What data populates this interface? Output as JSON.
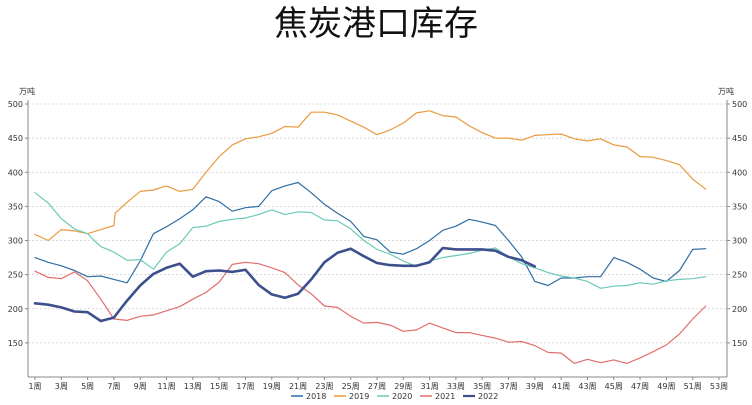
{
  "chart_data": {
    "type": "line",
    "title": "焦炭港口库存",
    "unit_left": "万吨",
    "unit_right": "万吨",
    "ylim": [
      100,
      500
    ],
    "yticks": [
      150,
      200,
      250,
      300,
      350,
      400,
      450,
      500
    ],
    "xlim": [
      1,
      53
    ],
    "x_tick_labels": [
      "1周",
      "3周",
      "5周",
      "7周",
      "9周",
      "11周",
      "13周",
      "15周",
      "17周",
      "19周",
      "21周",
      "23周",
      "25周",
      "27周",
      "29周",
      "31周",
      "33周",
      "35周",
      "37周",
      "39周",
      "41周",
      "43周",
      "45周",
      "47周",
      "49周",
      "51周",
      "53周"
    ],
    "grid": "horizontal dashed",
    "legend": "bottom-center",
    "series": [
      {
        "name": "2018",
        "color": "#2e6da4",
        "width": 1.2,
        "x": [
          1,
          2,
          3,
          4,
          5,
          6,
          7,
          8,
          9,
          10,
          11,
          12,
          13,
          14,
          15,
          16,
          17,
          18,
          19,
          20,
          21,
          22,
          23,
          24,
          25,
          26,
          27,
          28,
          29,
          30,
          31,
          32,
          33,
          34,
          35,
          36,
          37,
          38,
          39,
          40,
          41,
          42,
          43,
          44,
          45,
          46,
          47,
          48,
          49,
          50,
          51,
          52
        ],
        "y": [
          275,
          268,
          263,
          256,
          247,
          248,
          243,
          238,
          270,
          310,
          320,
          332,
          345,
          364,
          357,
          343,
          348,
          350,
          373,
          380,
          385,
          370,
          353,
          340,
          328,
          306,
          301,
          283,
          280,
          288,
          300,
          315,
          321,
          331,
          327,
          322,
          300,
          276,
          240,
          234,
          245,
          245,
          247,
          247,
          275,
          268,
          258,
          245,
          240,
          256,
          287,
          288
        ]
      },
      {
        "name": "2019",
        "color": "#ea9a3e",
        "width": 1.2,
        "x": [
          1,
          2,
          3,
          4,
          5,
          6,
          7,
          7.1,
          8,
          9,
          10,
          11,
          12,
          13,
          14,
          15,
          16,
          17,
          18,
          19,
          20,
          21,
          22,
          23,
          24,
          25,
          26,
          27,
          28,
          29,
          30,
          31,
          32,
          33,
          34,
          35,
          36,
          37,
          38,
          39,
          40,
          41,
          42,
          43,
          44,
          45,
          46,
          47,
          48,
          49,
          50,
          51,
          52
        ],
        "y": [
          309,
          300,
          316,
          314,
          310,
          316,
          322,
          340,
          356,
          372,
          374,
          380,
          372,
          375,
          400,
          423,
          440,
          449,
          452,
          457,
          467,
          466,
          488,
          488,
          484,
          475,
          466,
          455,
          462,
          472,
          487,
          490,
          483,
          481,
          468,
          458,
          450,
          450,
          447,
          454,
          455,
          456,
          449,
          446,
          449,
          440,
          437,
          423,
          422,
          417,
          411,
          390,
          375
        ]
      },
      {
        "name": "2020",
        "color": "#6cc9b8",
        "width": 1.2,
        "x": [
          1,
          2,
          3,
          4,
          5,
          5.5,
          6,
          7,
          8,
          9,
          10,
          11,
          12,
          13,
          14,
          15,
          16,
          17,
          18,
          19,
          20,
          21,
          22,
          23,
          24,
          25,
          26,
          27,
          28,
          29,
          30,
          31,
          32,
          33,
          34,
          35,
          36,
          37,
          38,
          39,
          40,
          41,
          42,
          43,
          44,
          45,
          46,
          47,
          48,
          49,
          50,
          51,
          52
        ],
        "y": [
          370,
          355,
          332,
          317,
          310,
          300,
          291,
          283,
          271,
          272,
          258,
          283,
          295,
          319,
          321,
          328,
          331,
          333,
          338,
          345,
          338,
          342,
          341,
          330,
          329,
          317,
          300,
          287,
          280,
          270,
          262,
          270,
          275,
          278,
          281,
          286,
          289,
          276,
          266,
          260,
          253,
          248,
          245,
          240,
          230,
          233,
          234,
          238,
          236,
          241,
          243,
          244,
          247
        ]
      },
      {
        "name": "2021",
        "color": "#e36d6d",
        "width": 1.2,
        "x": [
          1,
          2,
          3,
          4,
          5,
          6,
          7,
          8,
          9,
          10,
          11,
          12,
          13,
          14,
          15,
          16,
          17,
          18,
          19,
          20,
          21,
          22,
          23,
          24,
          25,
          26,
          27,
          28,
          29,
          30,
          31,
          32,
          33,
          34,
          35,
          36,
          37,
          38,
          39,
          40,
          41,
          42,
          43,
          44,
          45,
          46,
          47,
          48,
          49,
          50,
          51,
          52
        ],
        "y": [
          255,
          246,
          244,
          254,
          241,
          214,
          185,
          183,
          189,
          191,
          197,
          203,
          214,
          224,
          239,
          265,
          268,
          266,
          260,
          253,
          235,
          222,
          204,
          202,
          189,
          179,
          180,
          176,
          167,
          169,
          179,
          172,
          165,
          165,
          161,
          157,
          151,
          152,
          146,
          136,
          135,
          120,
          126,
          121,
          125,
          120,
          128,
          137,
          147,
          163,
          185,
          204
        ]
      },
      {
        "name": "2022",
        "color": "#3d4f8c",
        "width": 2.6,
        "x": [
          1,
          2,
          3,
          4,
          5,
          6,
          7,
          8,
          9,
          10,
          11,
          12,
          13,
          14,
          15,
          16,
          17,
          18,
          19,
          20,
          21,
          22,
          23,
          24,
          25,
          26,
          27,
          28,
          29,
          30,
          31,
          32,
          33,
          34,
          35,
          36,
          37,
          38,
          39
        ],
        "y": [
          208,
          206,
          202,
          196,
          195,
          182,
          187,
          212,
          234,
          251,
          260,
          266,
          247,
          255,
          256,
          254,
          257,
          235,
          221,
          216,
          222,
          243,
          268,
          282,
          288,
          277,
          267,
          264,
          263,
          263,
          268,
          289,
          287,
          287,
          287,
          285,
          276,
          271,
          262
        ]
      }
    ]
  }
}
